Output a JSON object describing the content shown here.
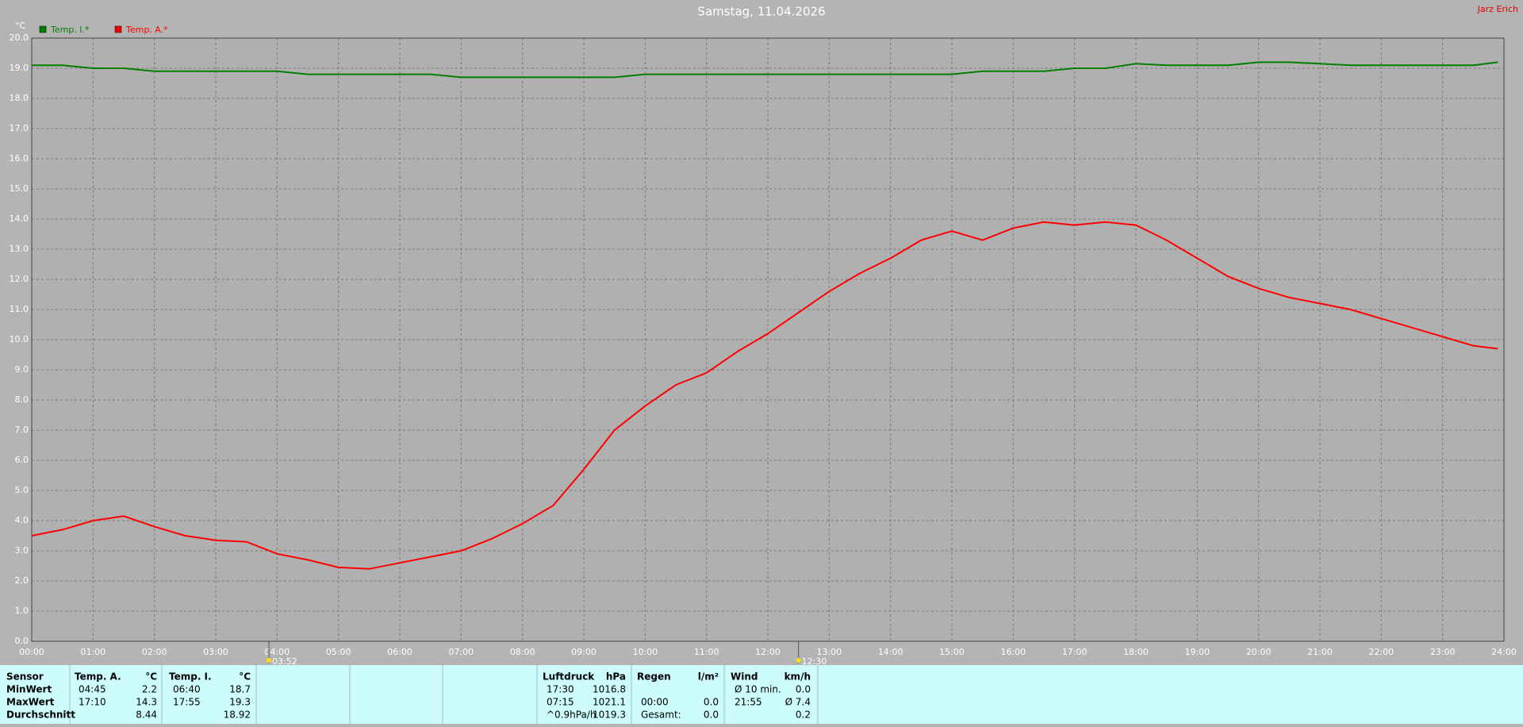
{
  "chart_data": {
    "type": "line",
    "title": "Samstag, 11.04.2026",
    "y_label": "°C",
    "credit": "Jarz Erich",
    "grid": true,
    "x": [
      0,
      0.5,
      1,
      1.5,
      2,
      2.5,
      3,
      3.5,
      4,
      4.5,
      5,
      5.5,
      6,
      6.5,
      7,
      7.5,
      8,
      8.5,
      9,
      9.5,
      10,
      10.5,
      11,
      11.5,
      12,
      12.5,
      13,
      13.5,
      14,
      14.5,
      15,
      15.5,
      16,
      16.5,
      17,
      17.5,
      18,
      18.5,
      19,
      19.5,
      20,
      20.5,
      21,
      21.5,
      22,
      22.5,
      23,
      23.5,
      23.9
    ],
    "series": [
      {
        "name": "Temp. I.*",
        "color": "#008000",
        "values": [
          19.1,
          19.1,
          19.0,
          19.0,
          18.9,
          18.9,
          18.9,
          18.9,
          18.9,
          18.8,
          18.8,
          18.8,
          18.8,
          18.8,
          18.7,
          18.7,
          18.7,
          18.7,
          18.7,
          18.7,
          18.8,
          18.8,
          18.8,
          18.8,
          18.8,
          18.8,
          18.8,
          18.8,
          18.8,
          18.8,
          18.8,
          18.9,
          18.9,
          18.9,
          19.0,
          19.0,
          19.15,
          19.1,
          19.1,
          19.1,
          19.2,
          19.2,
          19.15,
          19.1,
          19.1,
          19.1,
          19.1,
          19.1,
          19.2
        ]
      },
      {
        "name": "Temp. A.*",
        "color": "#ff0000",
        "values": [
          3.5,
          3.7,
          4.0,
          4.15,
          3.8,
          3.5,
          3.35,
          3.3,
          2.9,
          2.7,
          2.45,
          2.4,
          2.6,
          2.8,
          3.0,
          3.4,
          3.9,
          4.5,
          5.7,
          7.0,
          7.8,
          8.5,
          8.9,
          9.6,
          10.2,
          10.9,
          11.6,
          12.2,
          12.7,
          13.3,
          13.6,
          13.3,
          13.7,
          13.9,
          13.8,
          13.9,
          13.8,
          13.3,
          12.7,
          12.1,
          11.7,
          11.4,
          11.2,
          11.0,
          10.7,
          10.4,
          10.1,
          9.8,
          9.7
        ]
      }
    ],
    "xlim": [
      0,
      24
    ],
    "xticks": [
      {
        "value": 0,
        "label": "00:00"
      },
      {
        "value": 1,
        "label": "01:00"
      },
      {
        "value": 2,
        "label": "02:00"
      },
      {
        "value": 3,
        "label": "03:00"
      },
      {
        "value": 4,
        "label": "04:00"
      },
      {
        "value": 5,
        "label": "05:00"
      },
      {
        "value": 6,
        "label": "06:00"
      },
      {
        "value": 7,
        "label": "07:00"
      },
      {
        "value": 8,
        "label": "08:00"
      },
      {
        "value": 9,
        "label": "09:00"
      },
      {
        "value": 10,
        "label": "10:00"
      },
      {
        "value": 11,
        "label": "11:00"
      },
      {
        "value": 12,
        "label": "12:00"
      },
      {
        "value": 13,
        "label": "13:00"
      },
      {
        "value": 14,
        "label": "14:00"
      },
      {
        "value": 15,
        "label": "15:00"
      },
      {
        "value": 16,
        "label": "16:00"
      },
      {
        "value": 17,
        "label": "17:00"
      },
      {
        "value": 18,
        "label": "18:00"
      },
      {
        "value": 19,
        "label": "19:00"
      },
      {
        "value": 20,
        "label": "20:00"
      },
      {
        "value": 21,
        "label": "21:00"
      },
      {
        "value": 22,
        "label": "22:00"
      },
      {
        "value": 23,
        "label": "23:00"
      },
      {
        "value": 24,
        "label": "24:00"
      }
    ],
    "ylim": [
      0,
      20
    ],
    "yticks": [
      {
        "value": 0,
        "label": "0.0"
      },
      {
        "value": 1,
        "label": "1.0"
      },
      {
        "value": 2,
        "label": "2.0"
      },
      {
        "value": 3,
        "label": "3.0"
      },
      {
        "value": 4,
        "label": "4.0"
      },
      {
        "value": 5,
        "label": "5.0"
      },
      {
        "value": 6,
        "label": "6.0"
      },
      {
        "value": 7,
        "label": "7.0"
      },
      {
        "value": 8,
        "label": "8.0"
      },
      {
        "value": 9,
        "label": "9.0"
      },
      {
        "value": 10,
        "label": "10.0"
      },
      {
        "value": 11,
        "label": "11.0"
      },
      {
        "value": 12,
        "label": "12.0"
      },
      {
        "value": 13,
        "label": "13.0"
      },
      {
        "value": 14,
        "label": "14.0"
      },
      {
        "value": 15,
        "label": "15.0"
      },
      {
        "value": 16,
        "label": "16.0"
      },
      {
        "value": 17,
        "label": "17.0"
      },
      {
        "value": 18,
        "label": "18.0"
      },
      {
        "value": 19,
        "label": "19.0"
      },
      {
        "value": 20,
        "label": "20.0"
      }
    ],
    "annotations": [
      {
        "value": 3.867,
        "label": "03:52"
      },
      {
        "value": 12.5,
        "label": "12:30"
      }
    ]
  },
  "stats": {
    "labels": [
      "Sensor",
      "MinWert",
      "MaxWert",
      "Durchschnitt"
    ],
    "groups": [
      {
        "header": "Temp. A.",
        "unit": "°C",
        "cells": [
          [
            "04:45",
            "2.2"
          ],
          [
            "17:10",
            "14.3"
          ],
          [
            null,
            "8.44"
          ]
        ]
      },
      {
        "header": "Temp. I.",
        "unit": "°C",
        "cells": [
          [
            "06:40",
            "18.7"
          ],
          [
            "17:55",
            "19.3"
          ],
          [
            null,
            "18.92"
          ]
        ]
      },
      {
        "header": "Luftdruck",
        "unit": "hPa",
        "cells": [
          [
            "17:30",
            "1016.8"
          ],
          [
            "07:15",
            "1021.1"
          ],
          [
            "^0.9hPa/h",
            "1019.3"
          ]
        ]
      },
      {
        "header": "Regen",
        "unit": "l/m²",
        "cells": [
          [
            null,
            null
          ],
          [
            "00:00",
            "0.0"
          ],
          [
            "Gesamt:",
            "0.0"
          ]
        ]
      },
      {
        "header": "Wind",
        "unit": "km/h",
        "cells": [
          [
            "Ø 10 min.",
            "0.0"
          ],
          [
            "21:55",
            "Ø 7.4"
          ],
          [
            null,
            "0.2"
          ]
        ]
      }
    ]
  }
}
